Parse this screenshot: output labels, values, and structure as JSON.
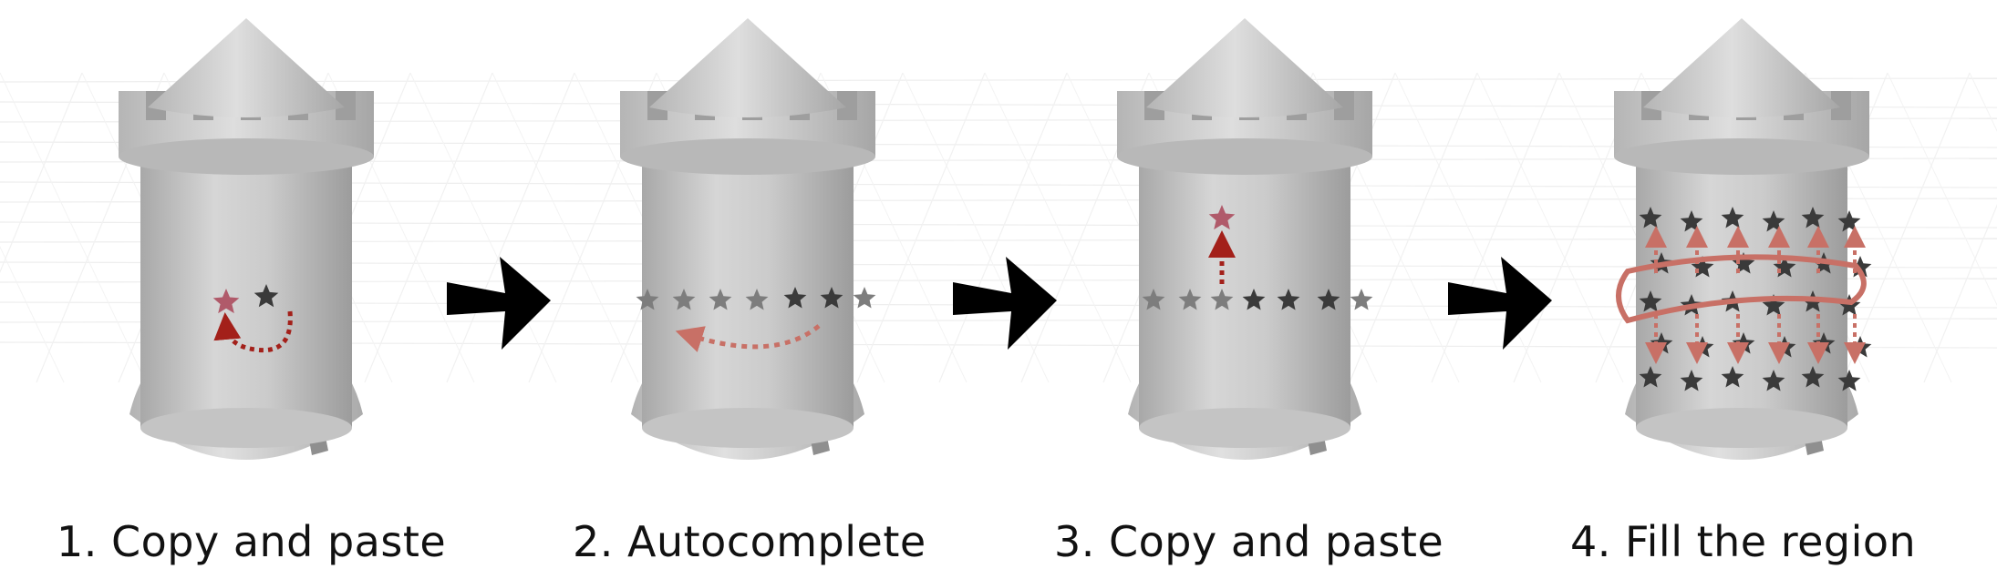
{
  "steps": [
    {
      "number": "1.",
      "label": "Copy and paste"
    },
    {
      "number": "2.",
      "label": "Autocomplete"
    },
    {
      "number": "3.",
      "label": "Copy and paste"
    },
    {
      "number": "4.",
      "label": "Fill the region"
    }
  ],
  "colors": {
    "tower": "#c9c9c9",
    "tower_dark": "#a9a9a9",
    "star_dark": "#3a3a3a",
    "star_gray": "#7d7d7d",
    "star_highlight": "#b05a6a",
    "arrow_red": "#a3201a",
    "arrow_salmon": "#c87066",
    "step_arrow": "#000000"
  },
  "icons": [
    "castle-tower",
    "star-icon",
    "step-arrow-icon"
  ]
}
